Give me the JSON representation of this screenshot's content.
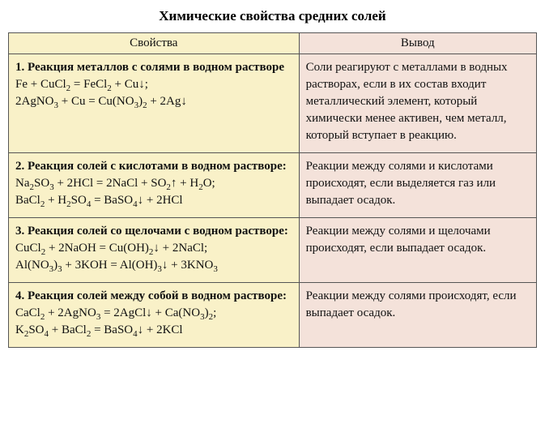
{
  "title": "Химические свойства средних солей",
  "columns": {
    "left": "Свойства",
    "right": "Вывод"
  },
  "rows": [
    {
      "heading": "1. Реакция металлов с солями в водном растворе",
      "eq1_html": "Fe + CuCl<sub>2</sub> = FeCl<sub>2</sub> + Cu↓;",
      "eq2_html": "2AgNO<sub>3</sub> + Cu = Cu(NO<sub>3</sub>)<sub>2</sub> + 2Ag↓",
      "conclusion": "Соли реагируют с металлами в вод­ных растворах, если в их состав входит металлический элемент, который химически менее активен, чем металл, который вступает в реакцию."
    },
    {
      "heading": "2. Реакция солей с кислотами в водном растворе:",
      "eq1_html": "Na<sub>2</sub>SO<sub>3</sub> + 2HCl = 2NaCl + SO<sub>2</sub>↑ + H<sub>2</sub>O;",
      "eq2_html": "BaCl<sub>2</sub> + H<sub>2</sub>SO<sub>4</sub> = BaSO<sub>4</sub>↓ + 2HCl",
      "conclusion": "Реакции между солями и кислотами происходят, если выделяется газ или выпадает осадок."
    },
    {
      "heading": "3. Реакция солей со щелочами с водном растворе:",
      "eq1_html": "CuCl<sub>2</sub> + 2NaOH = Cu(OH)<sub>2</sub>↓ + 2NaCl;",
      "eq2_html": "Al(NO<sub>3</sub>)<sub>3</sub> + 3KOH = Al(OH)<sub>3</sub>↓ + 3KNO<sub>3</sub>",
      "conclusion": "Реакции между солями и щелочами происходят, если выпадает осадок."
    },
    {
      "heading": "4. Реакция солей между собой в водном растворе:",
      "eq1_html": "CaCl<sub>2</sub> + 2AgNO<sub>3</sub> = 2AgCl↓ + Ca(NO<sub>3</sub>)<sub>2</sub>;",
      "eq2_html": "K<sub>2</sub>SO<sub>4</sub> + BaCl<sub>2</sub> = BaSO<sub>4</sub>↓ + 2KCl",
      "conclusion": "Реакции между солями происходят, если выпадает осадок."
    }
  ],
  "colors": {
    "left_bg": "#f9f1c8",
    "right_bg": "#f4e2da",
    "border": "#555555"
  }
}
